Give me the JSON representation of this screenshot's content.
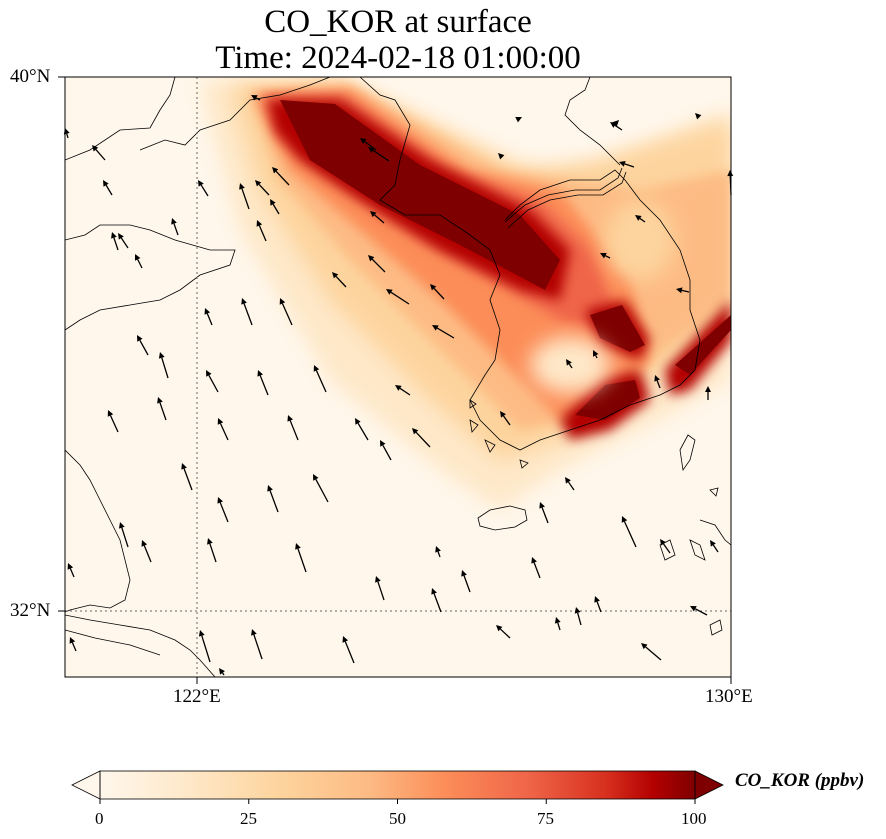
{
  "title": {
    "line1": "CO_KOR at surface",
    "line2": "Time: 2024-02-18 01:00:00"
  },
  "axes": {
    "lat_ticks": [
      "40°N",
      "32°N"
    ],
    "lon_ticks": [
      "122°E",
      "130°E"
    ]
  },
  "colorbar": {
    "label": "CO_KOR (ppbv)",
    "ticks": [
      "0",
      "25",
      "50",
      "75",
      "100"
    ],
    "range": [
      0,
      100
    ],
    "extend": "both",
    "colormap": "OrRd"
  },
  "map": {
    "projection": "lat-lon",
    "extent_lon": [
      120,
      130
    ],
    "extent_lat": [
      31,
      40
    ],
    "gridlines": "dotted at 122°E and 32°N",
    "field": "CO_KOR concentration, plume over central-west Korea and Yellow Sea",
    "vectors": "wind arrows, mostly pointing north-northwest"
  }
}
